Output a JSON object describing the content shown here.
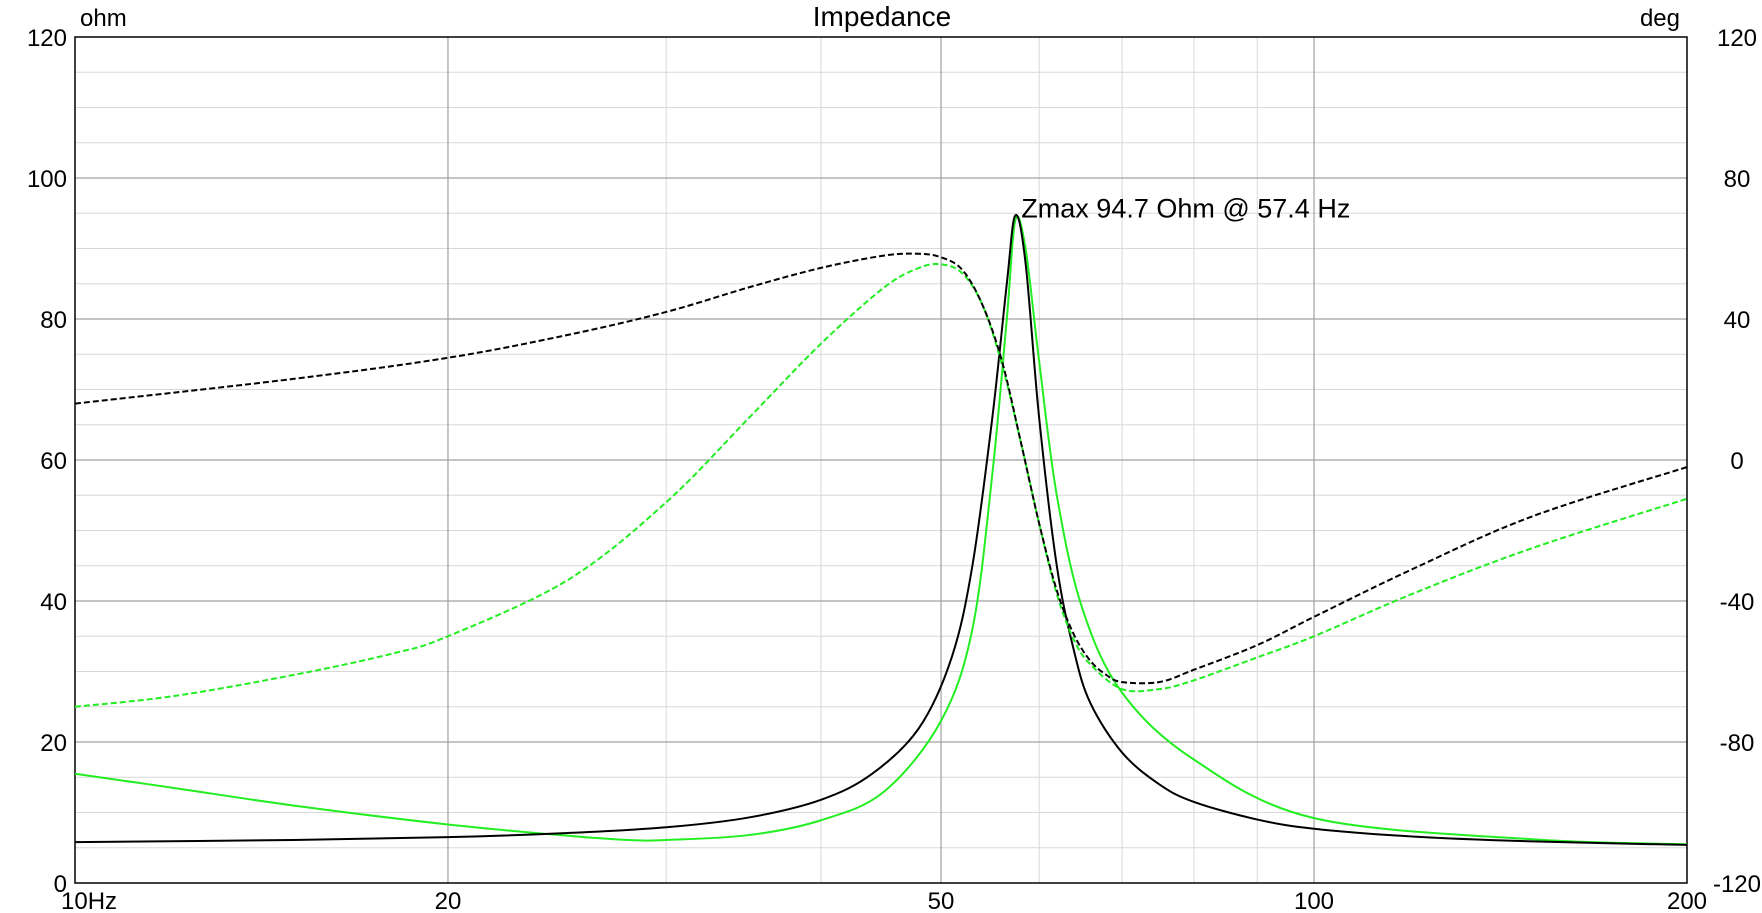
{
  "chart_data": {
    "type": "line",
    "title": "Impedance",
    "y_left_unit": "ohm",
    "y_right_unit": "deg",
    "x_scale": "log",
    "xlim": [
      10,
      200
    ],
    "ylim_left": [
      0,
      120
    ],
    "ylim_right": [
      -120,
      120
    ],
    "grid": true,
    "x_ticks": [
      {
        "value": 10,
        "label": "10Hz"
      },
      {
        "value": 20,
        "label": "20"
      },
      {
        "value": 50,
        "label": "50"
      },
      {
        "value": 100,
        "label": "100"
      },
      {
        "value": 200,
        "label": "200"
      }
    ],
    "y_left_ticks": [
      {
        "value": 0,
        "label": "0"
      },
      {
        "value": 20,
        "label": "20"
      },
      {
        "value": 40,
        "label": "40"
      },
      {
        "value": 60,
        "label": "60"
      },
      {
        "value": 80,
        "label": "80"
      },
      {
        "value": 100,
        "label": "100"
      },
      {
        "value": 120,
        "label": "120"
      }
    ],
    "y_right_ticks": [
      {
        "value": -120,
        "label": "-120"
      },
      {
        "value": -80,
        "label": "-80"
      },
      {
        "value": -40,
        "label": "-40"
      },
      {
        "value": 0,
        "label": "0"
      },
      {
        "value": 40,
        "label": "40"
      },
      {
        "value": 80,
        "label": "80"
      },
      {
        "value": 120,
        "label": "120"
      }
    ],
    "annotation": {
      "text": "Zmax 94.7 Ohm @ 57.4 Hz",
      "x": 57.4,
      "y": 94.7
    },
    "colors": {
      "black": "#000000",
      "green": "#22ee22",
      "grid_major": "#a0a0a0",
      "grid_minor": "#d8d8d8"
    },
    "series": [
      {
        "axis": "left",
        "style": "solid",
        "color": "#000000",
        "x": [
          10,
          15,
          20,
          25,
          30,
          35,
          40,
          44,
          48,
          51,
          53,
          55,
          56.5,
          57.4,
          58.5,
          60,
          62,
          64,
          66,
          70,
          75,
          80,
          90,
          100,
          120,
          150,
          200
        ],
        "y": [
          5.8,
          6.1,
          6.5,
          7.1,
          7.9,
          9.3,
          11.8,
          15.5,
          22,
          32,
          45,
          66,
          85,
          94.7,
          88,
          66,
          45,
          33,
          25.5,
          18.5,
          14,
          11.5,
          9,
          7.7,
          6.6,
          5.9,
          5.4
        ]
      },
      {
        "axis": "left",
        "style": "solid",
        "color": "#22ee22",
        "x": [
          10,
          12,
          15,
          20,
          25,
          28,
          30,
          35,
          40,
          45,
          50,
          53,
          55,
          56.5,
          57.4,
          58.5,
          60,
          62,
          65,
          70,
          80,
          100,
          150,
          200
        ],
        "y": [
          15.5,
          13.5,
          11,
          8.3,
          6.7,
          6.1,
          6.1,
          6.8,
          8.9,
          13,
          23,
          36,
          58,
          80,
          94,
          90,
          74,
          55,
          39,
          27,
          17.5,
          9.2,
          6.2,
          5.5
        ]
      },
      {
        "axis": "right",
        "style": "dashed",
        "color": "#000000",
        "x": [
          10,
          15,
          20,
          25,
          30,
          35,
          40,
          45,
          48,
          50,
          52,
          54,
          56,
          58,
          60,
          62,
          64,
          66,
          68,
          70,
          75,
          80,
          90,
          100,
          120,
          150,
          200
        ],
        "y": [
          16,
          23,
          29,
          35.5,
          42,
          49,
          54.5,
          58,
          58.5,
          57.5,
          54,
          44,
          28,
          5,
          -18,
          -37,
          -49.5,
          -57,
          -61,
          -63,
          -63,
          -59.5,
          -52.5,
          -44.5,
          -31,
          -16,
          -2
        ]
      },
      {
        "axis": "right",
        "style": "dashed",
        "color": "#22ee22",
        "x": [
          10,
          12,
          15,
          18,
          20,
          25,
          30,
          35,
          40,
          45,
          48,
          50,
          52,
          54,
          56,
          58,
          60,
          62,
          64,
          66,
          70,
          75,
          80,
          90,
          100,
          120,
          150,
          200
        ],
        "y": [
          -70,
          -67,
          -61,
          -55,
          -50,
          -34,
          -12,
          12,
          33,
          49,
          54.5,
          55.5,
          53,
          44,
          27,
          5,
          -18,
          -38,
          -51,
          -58,
          -65,
          -65,
          -62.5,
          -56,
          -50,
          -38,
          -25,
          -11
        ]
      }
    ]
  }
}
